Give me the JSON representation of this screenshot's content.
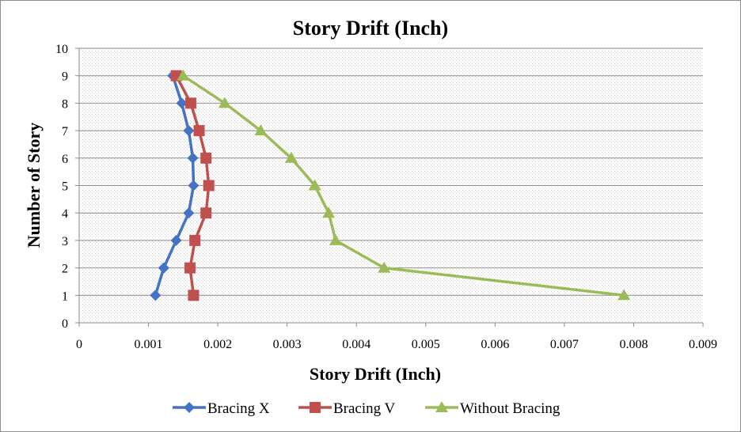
{
  "chart_data": {
    "type": "line",
    "title": "Story Drift (Inch)",
    "xlabel": "Story Drift (Inch)",
    "ylabel": "Number of Story",
    "xlim": [
      0,
      0.009
    ],
    "ylim": [
      0,
      10
    ],
    "x_ticks": [
      "0",
      "0.001",
      "0.002",
      "0.003",
      "0.004",
      "0.005",
      "0.006",
      "0.007",
      "0.008",
      "0.009"
    ],
    "y_ticks": [
      "0",
      "1",
      "2",
      "3",
      "4",
      "5",
      "6",
      "7",
      "8",
      "9",
      "10"
    ],
    "grid": "horizontal",
    "legend": "bottom",
    "series": [
      {
        "name": "Bracing X",
        "color": "#4472C4",
        "marker": "diamond",
        "points": [
          {
            "x": 0.0011,
            "y": 1
          },
          {
            "x": 0.00122,
            "y": 2
          },
          {
            "x": 0.0014,
            "y": 3
          },
          {
            "x": 0.00158,
            "y": 4
          },
          {
            "x": 0.00165,
            "y": 5
          },
          {
            "x": 0.00164,
            "y": 6
          },
          {
            "x": 0.00158,
            "y": 7
          },
          {
            "x": 0.00148,
            "y": 8
          },
          {
            "x": 0.00135,
            "y": 9
          }
        ]
      },
      {
        "name": "Bracing V",
        "color": "#C0504D",
        "marker": "square",
        "points": [
          {
            "x": 0.00165,
            "y": 1
          },
          {
            "x": 0.0016,
            "y": 2
          },
          {
            "x": 0.00167,
            "y": 3
          },
          {
            "x": 0.00183,
            "y": 4
          },
          {
            "x": 0.00187,
            "y": 5
          },
          {
            "x": 0.00183,
            "y": 6
          },
          {
            "x": 0.00173,
            "y": 7
          },
          {
            "x": 0.00161,
            "y": 8
          },
          {
            "x": 0.0014,
            "y": 9
          }
        ]
      },
      {
        "name": "Without Bracing",
        "color": "#9BBB59",
        "marker": "triangle",
        "points": [
          {
            "x": 0.00786,
            "y": 1
          },
          {
            "x": 0.0044,
            "y": 2
          },
          {
            "x": 0.0037,
            "y": 3
          },
          {
            "x": 0.0036,
            "y": 4
          },
          {
            "x": 0.0034,
            "y": 5
          },
          {
            "x": 0.00306,
            "y": 6
          },
          {
            "x": 0.00262,
            "y": 7
          },
          {
            "x": 0.0021,
            "y": 8
          },
          {
            "x": 0.0015,
            "y": 9
          }
        ]
      }
    ]
  }
}
